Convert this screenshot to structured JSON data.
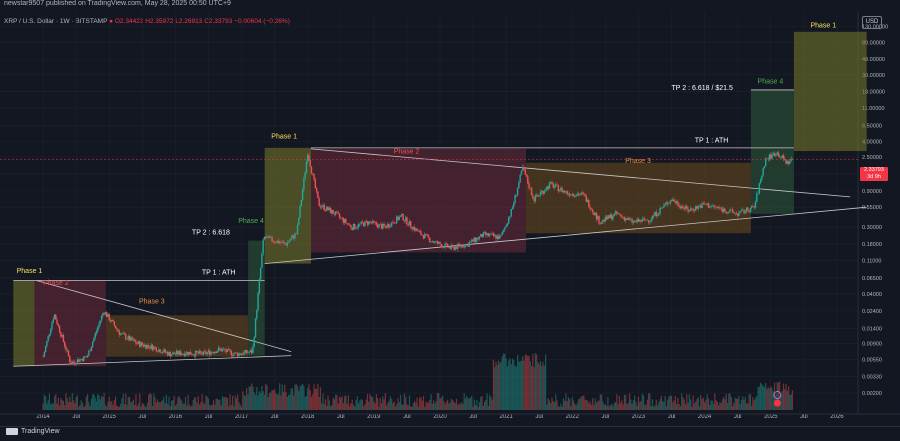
{
  "header": {
    "published": "newstar9507 published on TradingView.com, May 28, 2025 00:50 UTC+9",
    "symbol": "XRP / U.S. Dollar · 1W · BITSTAMP",
    "open": "O2.34423",
    "high": "H2.35972",
    "low": "L2.26913",
    "close": "C2.33793",
    "change": "−0.00604 (−0.26%)"
  },
  "price_axis": {
    "currency": "USD",
    "last_price": "2.33793",
    "countdown": "3d 9h"
  },
  "footer": {
    "brand": "TradingView"
  },
  "colors": {
    "background": "#131722",
    "phase1": "#7a7a2a",
    "phase2": "#6b2a3a",
    "phase3": "#6b4a1e",
    "phase4": "#2e5a3a",
    "up": "#26a69a",
    "down": "#ef5350",
    "line": "#c8c8c8"
  },
  "chart_data": {
    "type": "line",
    "title": "XRP / U.S. Dollar · 1W · BITSTAMP",
    "xlabel": "",
    "ylabel": "",
    "y_scale": "log",
    "x_tick_labels": [
      "2014",
      "Jul",
      "2015",
      "Jul",
      "2016",
      "Jul",
      "2017",
      "Jul",
      "2018",
      "Jul",
      "2019",
      "Jul",
      "2020",
      "Jul",
      "2021",
      "Jul",
      "2022",
      "Jul",
      "2023",
      "Jul",
      "2024",
      "Jul",
      "2025",
      "Jul",
      "2026"
    ],
    "y_tick_labels": [
      "130.00000",
      "80.00000",
      "48.00000",
      "30.00000",
      "18.00000",
      "11.00000",
      "6.50000",
      "4.00000",
      "2.50000",
      "1.50000",
      "0.90000",
      "0.55000",
      "0.30000",
      "0.18000",
      "0.11000",
      "0.06500",
      "0.04000",
      "0.02400",
      "0.01400",
      "0.00900",
      "0.00550",
      "0.00330",
      "0.00200"
    ],
    "series": [
      {
        "x": [
          "2014-01",
          "2014-03",
          "2014-06",
          "2014-09",
          "2014-12",
          "2015-03",
          "2015-06",
          "2015-09",
          "2015-12",
          "2016-03",
          "2016-06",
          "2016-09",
          "2016-12",
          "2017-03",
          "2017-05",
          "2017-07",
          "2017-09",
          "2017-11",
          "2018-01",
          "2018-03",
          "2018-06",
          "2018-09",
          "2018-12",
          "2019-03",
          "2019-06",
          "2019-09",
          "2019-12",
          "2020-03",
          "2020-06",
          "2020-09",
          "2020-12",
          "2021-02",
          "2021-04",
          "2021-06",
          "2021-09",
          "2021-12",
          "2022-03",
          "2022-06",
          "2022-09",
          "2022-12",
          "2023-03",
          "2023-07",
          "2023-10",
          "2024-01",
          "2024-04",
          "2024-07",
          "2024-10",
          "2024-12",
          "2025-02",
          "2025-04",
          "2025-05"
        ],
        "values": [
          0.006,
          0.022,
          0.005,
          0.006,
          0.024,
          0.012,
          0.009,
          0.008,
          0.0065,
          0.0068,
          0.0065,
          0.0075,
          0.0065,
          0.007,
          0.22,
          0.2,
          0.18,
          0.25,
          2.9,
          0.6,
          0.45,
          0.3,
          0.35,
          0.3,
          0.42,
          0.26,
          0.19,
          0.16,
          0.18,
          0.24,
          0.22,
          0.5,
          1.8,
          0.7,
          1.1,
          0.85,
          0.8,
          0.35,
          0.45,
          0.35,
          0.38,
          0.7,
          0.5,
          0.6,
          0.52,
          0.45,
          0.55,
          2.3,
          2.9,
          2.1,
          2.34
        ]
      }
    ],
    "annotations": [
      {
        "text": "Phase 1",
        "label": "phase1_2014"
      },
      {
        "text": "Phase 2",
        "label": "phase2_2014"
      },
      {
        "text": "Phase 3",
        "label": "phase3_2015"
      },
      {
        "text": "Phase 4",
        "label": "phase4_2017"
      },
      {
        "text": "TP 1 : ATH",
        "label": "tp1_2017"
      },
      {
        "text": "TP 2 : 6.618",
        "label": "tp2_2017"
      },
      {
        "text": "Phase 1",
        "label": "phase1_2017"
      },
      {
        "text": "Phase 2",
        "label": "phase2_2018"
      },
      {
        "text": "Phase 3",
        "label": "phase3_2021"
      },
      {
        "text": "TP 1 : ATH",
        "label": "tp1_2024"
      },
      {
        "text": "Phase 4",
        "label": "phase4_2025"
      },
      {
        "text": "TP 2 : 6.618 / $21.5",
        "label": "tp2_2025"
      },
      {
        "text": "Phase 1",
        "label": "phase1_2025"
      }
    ],
    "grid": true,
    "legend": "none"
  }
}
